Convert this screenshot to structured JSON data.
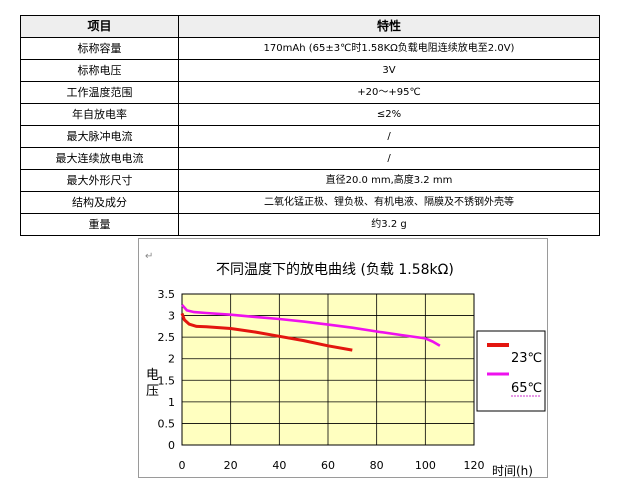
{
  "table": {
    "header": {
      "item": "项目",
      "property": "特性"
    },
    "rows": [
      {
        "item": "标称容量",
        "value": "170mAh (65±3℃时1.58KΩ负载电阻连续放电至2.0V)"
      },
      {
        "item": "标称电压",
        "value": "3V"
      },
      {
        "item": "工作温度范围",
        "value": "+20～+95℃"
      },
      {
        "item": "年自放电率",
        "value": "≤2%"
      },
      {
        "item": "最大脉冲电流",
        "value": "/"
      },
      {
        "item": "最大连续放电电流",
        "value": "/"
      },
      {
        "item": "最大外形尺寸",
        "value": "直径20.0 mm,高度3.2 mm"
      },
      {
        "item": "结构及成分",
        "value": "二氧化锰正极、锂负极、有机电液、隔膜及不锈钢外壳等"
      },
      {
        "item": "重量",
        "value": "约3.2 g"
      }
    ]
  },
  "chart": {
    "mark": "↵",
    "legend": {
      "s1": {
        "label": "23℃",
        "color": "#e3160f"
      },
      "s2": {
        "label": "65℃",
        "color": "#ee11ee"
      }
    },
    "xticks": [
      "0",
      "20",
      "40",
      "60",
      "80",
      "100",
      "120"
    ],
    "yticks": [
      "0",
      "0.5",
      "1",
      "1.5",
      "2",
      "2.5",
      "3",
      "3.5"
    ]
  },
  "chart_data": {
    "type": "line",
    "title": "不同温度下的放电曲线 (负载 1.58kΩ)",
    "xlabel": "时间(h)",
    "ylabel": "电压",
    "xlim": [
      0,
      120
    ],
    "ylim": [
      0,
      3.5
    ],
    "grid": true,
    "plot_background": "#ffffc0",
    "legend_position": "right",
    "series": [
      {
        "name": "23℃",
        "color": "#e3160f",
        "x": [
          0,
          1,
          3,
          6,
          10,
          20,
          30,
          40,
          50,
          60,
          70
        ],
        "y": [
          3.05,
          2.9,
          2.8,
          2.75,
          2.74,
          2.7,
          2.62,
          2.52,
          2.42,
          2.3,
          2.2
        ]
      },
      {
        "name": "65℃",
        "color": "#ee11ee",
        "x": [
          0,
          2,
          5,
          10,
          20,
          30,
          40,
          50,
          60,
          70,
          80,
          90,
          100,
          103,
          106
        ],
        "y": [
          3.25,
          3.12,
          3.08,
          3.06,
          3.02,
          2.97,
          2.92,
          2.86,
          2.79,
          2.72,
          2.63,
          2.55,
          2.47,
          2.4,
          2.3
        ]
      }
    ]
  }
}
